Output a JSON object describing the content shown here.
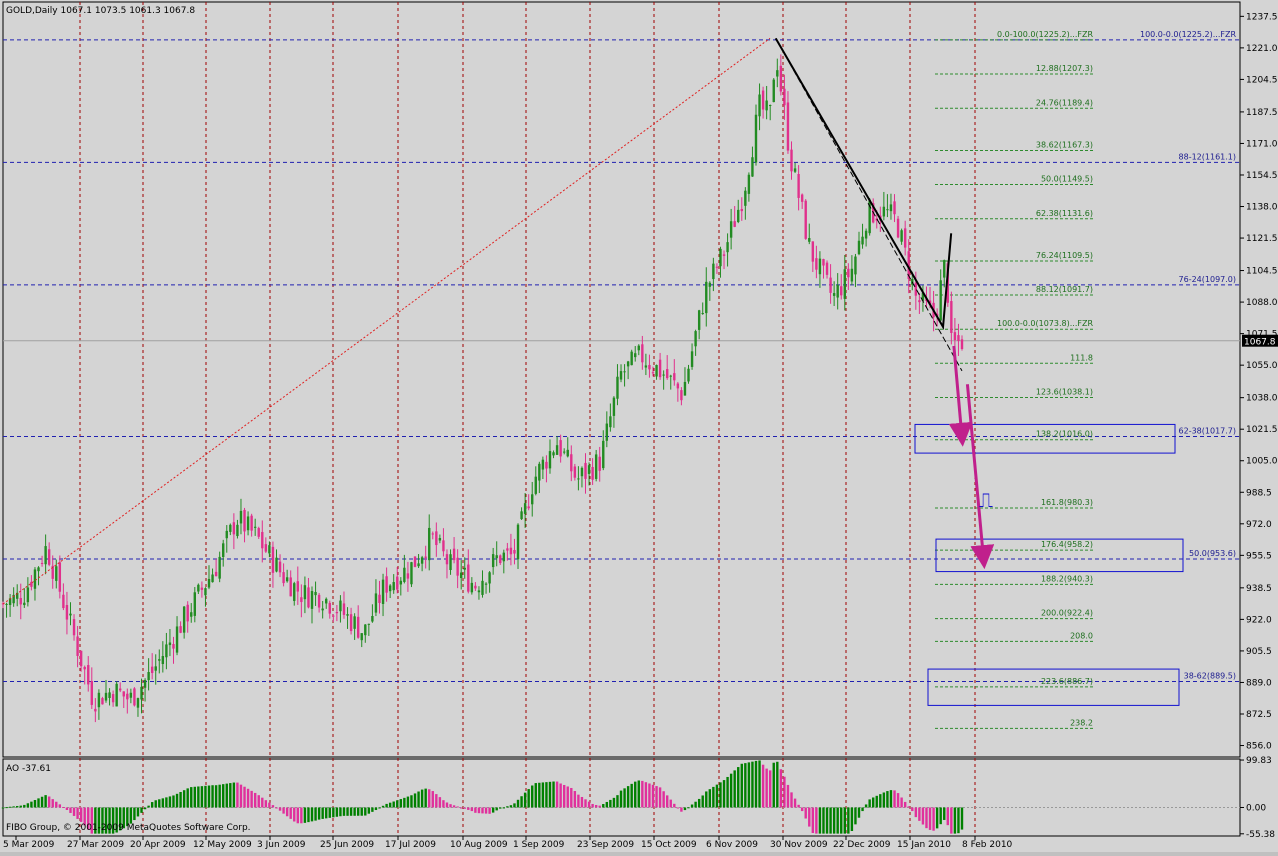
{
  "chart_data": [
    {
      "type": "candlestick",
      "title": "GOLD,Daily  1067.1  1073.5  1061.3  1067.8",
      "symbol": "GOLD",
      "timeframe": "Daily",
      "ohlc_last": {
        "open": 1067.1,
        "high": 1073.5,
        "low": 1061.3,
        "close": 1067.8
      },
      "current_price_label": "1067.8",
      "ylim": [
        850,
        1245
      ],
      "y_ticks": [
        "1237.5",
        "1221.0",
        "1204.5",
        "1187.5",
        "1171.0",
        "1154.5",
        "1138.0",
        "1121.5",
        "1104.5",
        "1088.0",
        "1071.5",
        "1055.0",
        "1038.0",
        "1021.5",
        "1005.0",
        "988.5",
        "972.0",
        "955.5",
        "938.5",
        "922.0",
        "905.5",
        "889.0",
        "872.5",
        "856.0"
      ],
      "x_labels": [
        "5 Mar 2009",
        "27 Mar 2009",
        "20 Apr 2009",
        "12 May 2009",
        "3 Jun 2009",
        "25 Jun 2009",
        "17 Jul 2009",
        "10 Aug 2009",
        "1 Sep 2009",
        "23 Sep 2009",
        "15 Oct 2009",
        "6 Nov 2009",
        "30 Nov 2009",
        "22 Dec 2009",
        "15 Jan 2010",
        "8 Feb 2010"
      ],
      "bull_color": "#228b22",
      "bear_color": "#e0308c",
      "closes_path": [
        {
          "date": "5 Mar 2009",
          "close": 930
        },
        {
          "date": "12 Mar 2009",
          "close": 935
        },
        {
          "date": "20 Mar 2009",
          "close": 960
        },
        {
          "date": "27 Mar 2009",
          "close": 925
        },
        {
          "date": "6 Apr 2009",
          "close": 880
        },
        {
          "date": "14 Apr 2009",
          "close": 885
        },
        {
          "date": "20 Apr 2009",
          "close": 880
        },
        {
          "date": "28 Apr 2009",
          "close": 895
        },
        {
          "date": "6 May 2009",
          "close": 915
        },
        {
          "date": "12 May 2009",
          "close": 930
        },
        {
          "date": "20 May 2009",
          "close": 950
        },
        {
          "date": "27 May 2009",
          "close": 975
        },
        {
          "date": "3 Jun 2009",
          "close": 965
        },
        {
          "date": "12 Jun 2009",
          "close": 945
        },
        {
          "date": "19 Jun 2009",
          "close": 935
        },
        {
          "date": "25 Jun 2009",
          "close": 935
        },
        {
          "date": "3 Jul 2009",
          "close": 925
        },
        {
          "date": "10 Jul 2009",
          "close": 915
        },
        {
          "date": "17 Jul 2009",
          "close": 940
        },
        {
          "date": "27 Jul 2009",
          "close": 950
        },
        {
          "date": "3 Aug 2009",
          "close": 965
        },
        {
          "date": "10 Aug 2009",
          "close": 950
        },
        {
          "date": "19 Aug 2009",
          "close": 940
        },
        {
          "date": "27 Aug 2009",
          "close": 955
        },
        {
          "date": "1 Sep 2009",
          "close": 955
        },
        {
          "date": "8 Sep 2009",
          "close": 995
        },
        {
          "date": "16 Sep 2009",
          "close": 1015
        },
        {
          "date": "23 Sep 2009",
          "close": 995
        },
        {
          "date": "1 Oct 2009",
          "close": 1005
        },
        {
          "date": "8 Oct 2009",
          "close": 1050
        },
        {
          "date": "15 Oct 2009",
          "close": 1060
        },
        {
          "date": "23 Oct 2009",
          "close": 1050
        },
        {
          "date": "29 Oct 2009",
          "close": 1040
        },
        {
          "date": "6 Nov 2009",
          "close": 1095
        },
        {
          "date": "13 Nov 2009",
          "close": 1115
        },
        {
          "date": "20 Nov 2009",
          "close": 1145
        },
        {
          "date": "26 Nov 2009",
          "close": 1190
        },
        {
          "date": "30 Nov 2009",
          "close": 1185
        },
        {
          "date": "2 Dec 2009",
          "close": 1220
        },
        {
          "date": "7 Dec 2009",
          "close": 1165
        },
        {
          "date": "14 Dec 2009",
          "close": 1115
        },
        {
          "date": "22 Dec 2009",
          "close": 1090
        },
        {
          "date": "29 Dec 2009",
          "close": 1105
        },
        {
          "date": "4 Jan 2010",
          "close": 1135
        },
        {
          "date": "11 Jan 2010",
          "close": 1135
        },
        {
          "date": "15 Jan 2010",
          "close": 1130
        },
        {
          "date": "22 Jan 2010",
          "close": 1090
        },
        {
          "date": "29 Jan 2010",
          "close": 1080
        },
        {
          "date": "2 Feb 2010",
          "close": 1110
        },
        {
          "date": "4 Feb 2010",
          "close": 1065
        },
        {
          "date": "8 Feb 2010",
          "close": 1067.8
        }
      ],
      "horizontal_levels": [
        {
          "price": 1225.2,
          "label": "100.0-0.0(1225.2)...FZR",
          "kind": "blue"
        },
        {
          "price": 1161.1,
          "label": "88-12(1161.1)",
          "kind": "blue"
        },
        {
          "price": 1097.0,
          "label": "76-24(1097.0)",
          "kind": "blue"
        },
        {
          "price": 1017.7,
          "label": "62-38(1017.7)",
          "kind": "blue"
        },
        {
          "price": 953.6,
          "label": "50.0(953.6)",
          "kind": "blue"
        },
        {
          "price": 889.5,
          "label": "38-62(889.5)",
          "kind": "blue"
        }
      ],
      "fib_levels": [
        {
          "price": 1225.2,
          "label": "0.0-100.0(1225.2)...FZR"
        },
        {
          "price": 1207.3,
          "label": "12.88(1207.3)"
        },
        {
          "price": 1189.4,
          "label": "24.76(1189.4)"
        },
        {
          "price": 1167.3,
          "label": "38.62(1167.3)"
        },
        {
          "price": 1149.5,
          "label": "50.0(1149.5)"
        },
        {
          "price": 1131.6,
          "label": "62.38(1131.6)"
        },
        {
          "price": 1109.5,
          "label": "76.24(1109.5)"
        },
        {
          "price": 1091.7,
          "label": "88.12(1091.7)"
        },
        {
          "price": 1073.8,
          "label": "100.0-0.0(1073.8)...FZR"
        },
        {
          "price": 1056.0,
          "label": "111.8"
        },
        {
          "price": 1038.1,
          "label": "123.6(1038.1)"
        },
        {
          "price": 1016.0,
          "label": "138.2(1016.0)"
        },
        {
          "price": 980.3,
          "label": "161.8(980.3)"
        },
        {
          "price": 958.2,
          "label": "176.4(958.2)"
        },
        {
          "price": 940.3,
          "label": "188.2(940.3)"
        },
        {
          "price": 922.4,
          "label": "200.0(922.4)"
        },
        {
          "price": 910.5,
          "label": "208.0"
        },
        {
          "price": 886.7,
          "label": "223.6(886.7)"
        },
        {
          "price": 865.0,
          "label": "238.2"
        }
      ],
      "target_boxes": [
        {
          "top": 1024,
          "bottom": 1009
        },
        {
          "top": 964,
          "bottom": 947
        },
        {
          "top": 896,
          "bottom": 877
        }
      ],
      "trend_lines": {
        "red_dotted": [
          {
            "date": "5 Mar 2009",
            "price": 930
          },
          {
            "date": "30 Nov 2009",
            "price": 1226
          }
        ],
        "black_dashed": [
          {
            "date": "2 Dec 2009",
            "price": 1226
          },
          {
            "date": "8 Feb 2010",
            "price": 1052
          }
        ],
        "black_solid": [
          {
            "date": "2 Dec 2009",
            "price": 1226
          },
          {
            "date": "1 Feb 2010",
            "price": 1075
          },
          {
            "date": "4 Feb 2010",
            "price": 1124
          }
        ],
        "magenta_arrows": [
          [
            {
              "date": "5 Feb 2010",
              "price": 1065
            },
            {
              "date": "8 Feb 2010",
              "price": 1017
            }
          ],
          [
            {
              "date": "10 Feb 2010",
              "price": 1045
            },
            {
              "date": "16 Feb 2010",
              "price": 953
            }
          ]
        ]
      },
      "current_level": 1067.8
    },
    {
      "type": "bar",
      "title": "AO -37.61",
      "indicator": "AO",
      "value": -37.61,
      "ylim": [
        -60,
        102
      ],
      "y_ticks": [
        "99.83",
        "0.00",
        "-55.38"
      ],
      "up_color": "#008000",
      "down_color": "#e0309c"
    }
  ],
  "footer": {
    "copyright": "FIBO Group, © 2001-2009 MetaQuotes Software Corp."
  },
  "marker_glyph": "⎍"
}
